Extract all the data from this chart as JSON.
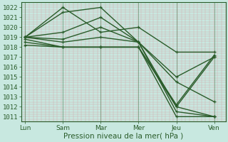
{
  "xlabel": "Pression niveau de la mer( hPa )",
  "bg_color": "#c8e8e0",
  "grid_color": "#d4b0b0",
  "line_color": "#2a5c2a",
  "ylim": [
    1010.5,
    1022.5
  ],
  "yticks": [
    1011,
    1012,
    1013,
    1014,
    1015,
    1016,
    1017,
    1018,
    1019,
    1020,
    1021,
    1022
  ],
  "x_labels": [
    "Lun",
    "Sam",
    "Mar",
    "Mer",
    "Jeu",
    "Ven"
  ],
  "x_positions": [
    0,
    0.6,
    1.6,
    3.0,
    4.2,
    5.0
  ],
  "lines": [
    [
      1019.0,
      1022.0,
      1022.5,
      1019.5,
      1020.0,
      1017.5,
      1017.5
    ],
    [
      1019.0,
      1021.2,
      1022.2,
      1019.0,
      1018.0,
      1015.0,
      1017.2
    ],
    [
      1019.0,
      1020.0,
      1021.5,
      1019.8,
      1019.0,
      1014.8,
      1012.5
    ],
    [
      1019.0,
      1019.5,
      1020.5,
      1019.2,
      1019.5,
      1012.5,
      1011.2
    ],
    [
      1019.0,
      1019.0,
      1019.0,
      1018.8,
      1018.5,
      1012.0,
      1011.0
    ],
    [
      1018.8,
      1018.5,
      1018.5,
      1018.0,
      1018.0,
      1011.5,
      1011.0
    ],
    [
      1018.5,
      1018.2,
      1018.0,
      1018.0,
      1018.0,
      1012.0,
      1017.2
    ],
    [
      1018.2,
      1018.0,
      1018.0,
      1018.0,
      1018.0,
      1012.2,
      1017.5
    ]
  ],
  "marker_size": 3.5,
  "line_width": 1.0,
  "font_size": 6.5,
  "label_font_size": 7.5
}
